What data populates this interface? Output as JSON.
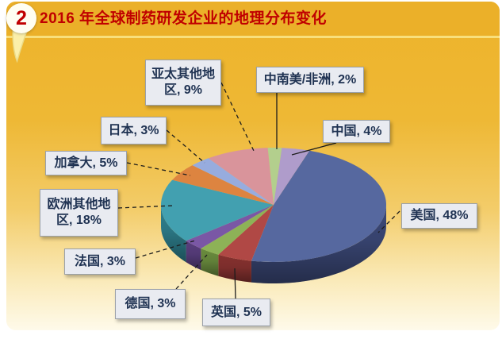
{
  "page": {
    "badge": "2",
    "title": "2016 年全球制药研发企业的地理分布变化",
    "title_color": "#C00000",
    "banner_color": "#EBB029",
    "divider_color": "#F8DF7C",
    "background_top": "#EDB32A",
    "background_bottom": "#FEFAEA"
  },
  "chart_data": {
    "type": "pie",
    "effect": "3d",
    "title": "2016 年全球制药研发企业的地理分布变化",
    "unit": "%",
    "order": "clockwise-from-top",
    "label_format": "{label}, {value}%",
    "label_box": {
      "bg": "#E9EBF1",
      "border": "#9BA1A9",
      "text_color": "#1F3252"
    },
    "leader_line_color": "#1C1C1C",
    "slices": [
      {
        "label": "中南美/非洲",
        "value": 2,
        "color": "#B3CF8D",
        "side_color": "#8EA96C"
      },
      {
        "label": "中国",
        "value": 4,
        "color": "#AF9CCB",
        "side_color": "#88779F"
      },
      {
        "label": "美国",
        "value": 48,
        "color": "#56689F",
        "side_color": "#3B4877"
      },
      {
        "label": "英国",
        "value": 5,
        "color": "#B04845",
        "side_color": "#86312F"
      },
      {
        "label": "德国",
        "value": 3,
        "color": "#8DB257",
        "side_color": "#6A8C3E"
      },
      {
        "label": "法国",
        "value": 3,
        "color": "#7A57A5",
        "side_color": "#593E7E"
      },
      {
        "label": "欧洲其他地区",
        "value": 18,
        "color": "#42A0B0",
        "side_color": "#2E7F8D"
      },
      {
        "label": "加拿大",
        "value": 5,
        "color": "#DD8440",
        "side_color": "#B2642A"
      },
      {
        "label": "日本",
        "value": 3,
        "color": "#97ACDE",
        "side_color": "#7186B4"
      },
      {
        "label": "亚太其他地区",
        "value": 9,
        "color": "#D9949B",
        "side_color": "#B06E76"
      }
    ]
  }
}
